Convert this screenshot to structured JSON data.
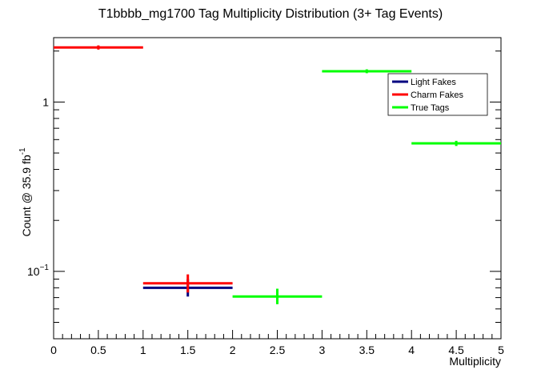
{
  "chart_data": {
    "type": "scatter",
    "title": "T1bbbb_mg1700 Tag Multiplicity Distribution (3+ Tag Events)",
    "xlabel": "Multiplicity",
    "ylabel_main": "Count @ 35.9 fb",
    "ylabel_sup": "-1",
    "xlim": [
      0,
      5
    ],
    "ylim": [
      0.04,
      2.4
    ],
    "y_scale": "log",
    "x_ticks": [
      "0",
      "0.5",
      "1",
      "1.5",
      "2",
      "2.5",
      "3",
      "3.5",
      "4",
      "4.5",
      "5"
    ],
    "y_ticks": [
      {
        "value": 1,
        "base": "1",
        "exp": ""
      },
      {
        "value": 0.1,
        "base": "10",
        "exp": "−1"
      }
    ],
    "legend_position": "top-right",
    "grid": false,
    "series": [
      {
        "name": "Light Fakes",
        "color": "#000080",
        "points": [
          {
            "x": 1.5,
            "xerr": 0.5,
            "y": 0.08,
            "ylo": 0.071,
            "yhi": 0.09
          }
        ]
      },
      {
        "name": "Charm Fakes",
        "color": "#ff0000",
        "points": [
          {
            "x": 0.5,
            "xerr": 0.5,
            "y": 2.1,
            "ylo": 2.04,
            "yhi": 2.16
          },
          {
            "x": 1.5,
            "xerr": 0.5,
            "y": 0.085,
            "ylo": 0.075,
            "yhi": 0.096
          }
        ]
      },
      {
        "name": "True Tags",
        "color": "#00ff00",
        "points": [
          {
            "x": 2.5,
            "xerr": 0.5,
            "y": 0.071,
            "ylo": 0.064,
            "yhi": 0.079
          },
          {
            "x": 3.5,
            "xerr": 0.5,
            "y": 1.52,
            "ylo": 1.48,
            "yhi": 1.56
          },
          {
            "x": 4.5,
            "xerr": 0.5,
            "y": 0.57,
            "ylo": 0.55,
            "yhi": 0.59
          }
        ]
      }
    ]
  }
}
